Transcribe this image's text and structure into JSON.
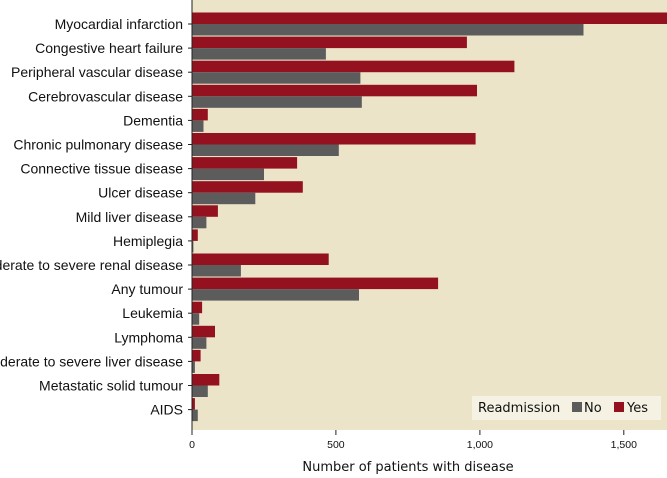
{
  "chart_data": {
    "type": "bar",
    "orientation": "horizontal",
    "title": "",
    "xlabel": "Number of patients with disease",
    "ylabel": "",
    "xlim": [
      0,
      1650
    ],
    "xticks": [
      0,
      500,
      1000,
      1500
    ],
    "xtick_labels": [
      "0",
      "500",
      "1,000",
      "1,500"
    ],
    "grid": false,
    "background_color": "#ebe4c8",
    "legend": {
      "title": "Readmission",
      "position": "bottom-right"
    },
    "categories": [
      "Myocardial infarction",
      "Congestive heart failure",
      "Peripheral vascular disease",
      "Cerebrovascular disease",
      "Dementia",
      "Chronic pulmonary disease",
      "Connective tissue disease",
      "Ulcer disease",
      "Mild liver disease",
      "Hemiplegia",
      "Moderate to severe renal disease",
      "Any tumour",
      "Leukemia",
      "Lymphoma",
      "Moderate to severe liver disease",
      "Metastatic solid tumour",
      "AIDS"
    ],
    "series": [
      {
        "name": "Yes",
        "color": "#94111f",
        "values": [
          1650,
          955,
          1120,
          990,
          55,
          985,
          365,
          385,
          90,
          20,
          475,
          855,
          35,
          80,
          30,
          95,
          10
        ]
      },
      {
        "name": "No",
        "color": "#5c5c5c",
        "values": [
          1360,
          465,
          585,
          590,
          40,
          510,
          250,
          220,
          50,
          5,
          170,
          580,
          25,
          50,
          10,
          55,
          20
        ]
      }
    ]
  }
}
